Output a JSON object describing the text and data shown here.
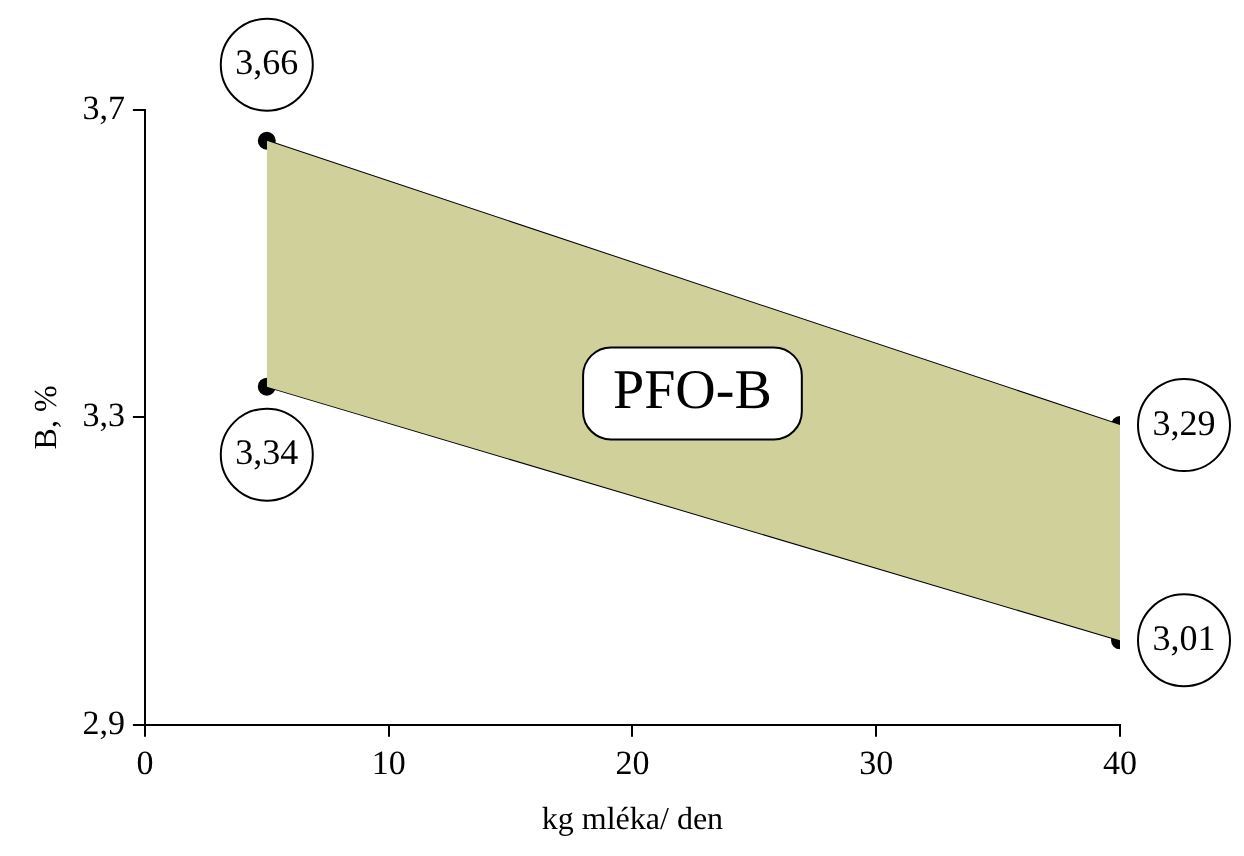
{
  "chart_data": {
    "type": "line",
    "xlabel": "kg mléka/ den",
    "ylabel": "B, %",
    "x": [
      5,
      40
    ],
    "series": [
      {
        "color": "#000000",
        "values": [
          3.66,
          3.29
        ],
        "value_labels": [
          "3,66",
          "3,29"
        ],
        "lower": [
          3.34,
          3.01
        ],
        "upper": [
          3.66,
          3.29
        ]
      },
      {
        "color": "#000000",
        "values": [
          3.34,
          3.01
        ],
        "value_labels": [
          "3,34",
          "3,01"
        ]
      }
    ],
    "xlim": [
      0,
      40
    ],
    "xticks": [
      0,
      10,
      20,
      30,
      40
    ],
    "ylim": [
      2.9,
      3.7
    ],
    "yticks": [
      {
        "value": 2.9,
        "label": "2,9"
      },
      {
        "value": 3.3,
        "label": "3,3"
      },
      {
        "value": 3.7,
        "label": "3,7"
      }
    ],
    "grid": false,
    "legend": false,
    "marker": "circle",
    "line_style": "solid",
    "annotations": [
      "PFO-B"
    ]
  }
}
